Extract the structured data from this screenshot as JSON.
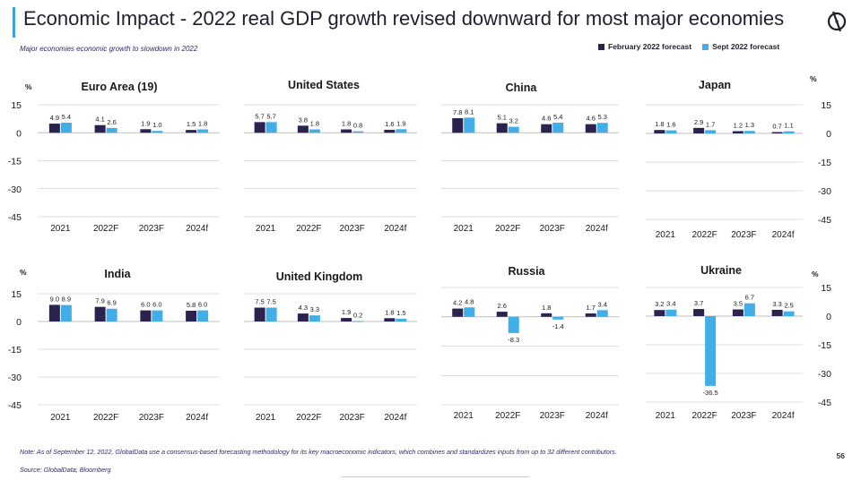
{
  "header": {
    "title": "Economic Impact - 2022 real GDP growth revised downward for most major economies",
    "subtitle": "Major economies economic growth to slowdown in 2022"
  },
  "legend": {
    "feb_label": "February 2022 forecast",
    "sept_label": "Sept 2022 forecast"
  },
  "colors": {
    "feb": "#2b2250",
    "sept": "#42aee8",
    "axis": "#bfbfbf",
    "accent": "#3aa3e3"
  },
  "footer": {
    "note": "Note: As of September 12, 2022, GlobalData use a consensus-based forecasting methodology for its key macroeconomic indicators, which combines and standardizes inputs from up to 32 different contributors.",
    "source": "Source: GlobalData; Bloomberg",
    "page": "56"
  },
  "chart_data": [
    {
      "type": "bar",
      "title": "Euro Area (19)",
      "unit": "%",
      "categories": [
        "2021",
        "2022F",
        "2023F",
        "2024f"
      ],
      "ylim": [
        -45,
        15
      ],
      "yticks": [
        15,
        0,
        -15,
        -30,
        -45
      ],
      "series": [
        {
          "name": "February 2022 forecast",
          "values": [
            4.9,
            4.1,
            1.9,
            1.5
          ]
        },
        {
          "name": "Sept 2022 forecast",
          "values": [
            5.4,
            2.6,
            1.0,
            1.8
          ]
        }
      ]
    },
    {
      "type": "bar",
      "title": "United States",
      "unit": "",
      "categories": [
        "2021",
        "2022F",
        "2023F",
        "2024f"
      ],
      "ylim": [
        -45,
        15
      ],
      "yticks": [],
      "series": [
        {
          "name": "February 2022 forecast",
          "values": [
            5.7,
            3.8,
            1.8,
            1.6
          ]
        },
        {
          "name": "Sept 2022 forecast",
          "values": [
            5.7,
            1.8,
            0.8,
            1.9
          ]
        }
      ]
    },
    {
      "type": "bar",
      "title": "China",
      "unit": "",
      "categories": [
        "2021",
        "2022F",
        "2023F",
        "2024f"
      ],
      "ylim": [
        -45,
        15
      ],
      "yticks": [],
      "series": [
        {
          "name": "February 2022 forecast",
          "values": [
            7.8,
            5.1,
            4.6,
            4.6
          ]
        },
        {
          "name": "Sept 2022 forecast",
          "values": [
            8.1,
            3.2,
            5.4,
            5.3
          ]
        }
      ]
    },
    {
      "type": "bar",
      "title": "Japan",
      "unit": "%",
      "categories": [
        "2021",
        "2022F",
        "2023F",
        "2024f"
      ],
      "ylim": [
        -45,
        15
      ],
      "yticks": [
        15,
        0,
        -15,
        -30,
        -45
      ],
      "series": [
        {
          "name": "February 2022 forecast",
          "values": [
            1.8,
            2.9,
            1.2,
            0.7
          ]
        },
        {
          "name": "Sept 2022 forecast",
          "values": [
            1.6,
            1.7,
            1.3,
            1.1
          ]
        }
      ]
    },
    {
      "type": "bar",
      "title": "India",
      "unit": "%",
      "categories": [
        "2021",
        "2022F",
        "2023F",
        "2024f"
      ],
      "ylim": [
        -45,
        15
      ],
      "yticks": [
        15,
        0,
        -15,
        -30,
        -45
      ],
      "series": [
        {
          "name": "February 2022 forecast",
          "values": [
            9.0,
            7.9,
            6.0,
            5.8
          ]
        },
        {
          "name": "Sept 2022 forecast",
          "values": [
            8.9,
            6.9,
            6.0,
            6.0
          ]
        }
      ]
    },
    {
      "type": "bar",
      "title": "United Kingdom",
      "unit": "",
      "categories": [
        "2021",
        "2022F",
        "2023F",
        "2024f"
      ],
      "ylim": [
        -45,
        15
      ],
      "yticks": [],
      "series": [
        {
          "name": "February 2022 forecast",
          "values": [
            7.5,
            4.3,
            1.9,
            1.8
          ]
        },
        {
          "name": "Sept 2022 forecast",
          "values": [
            7.5,
            3.3,
            0.2,
            1.5
          ]
        }
      ]
    },
    {
      "type": "bar",
      "title": "Russia",
      "unit": "",
      "categories": [
        "2021",
        "2022F",
        "2023F",
        "2024f"
      ],
      "ylim": [
        -45,
        15
      ],
      "yticks": [],
      "series": [
        {
          "name": "February 2022 forecast",
          "values": [
            4.2,
            2.6,
            1.8,
            1.7
          ]
        },
        {
          "name": "Sept 2022 forecast",
          "values": [
            4.8,
            -8.3,
            -1.4,
            3.4
          ]
        }
      ]
    },
    {
      "type": "bar",
      "title": "Ukraine",
      "unit": "%",
      "categories": [
        "2021",
        "2022F",
        "2023F",
        "2024f"
      ],
      "ylim": [
        -45,
        15
      ],
      "yticks": [
        15,
        0,
        -15,
        -30,
        -45
      ],
      "series": [
        {
          "name": "February 2022 forecast",
          "values": [
            3.2,
            3.7,
            3.5,
            3.3
          ]
        },
        {
          "name": "Sept 2022 forecast",
          "values": [
            3.4,
            -36.5,
            6.7,
            2.5
          ]
        }
      ]
    }
  ]
}
